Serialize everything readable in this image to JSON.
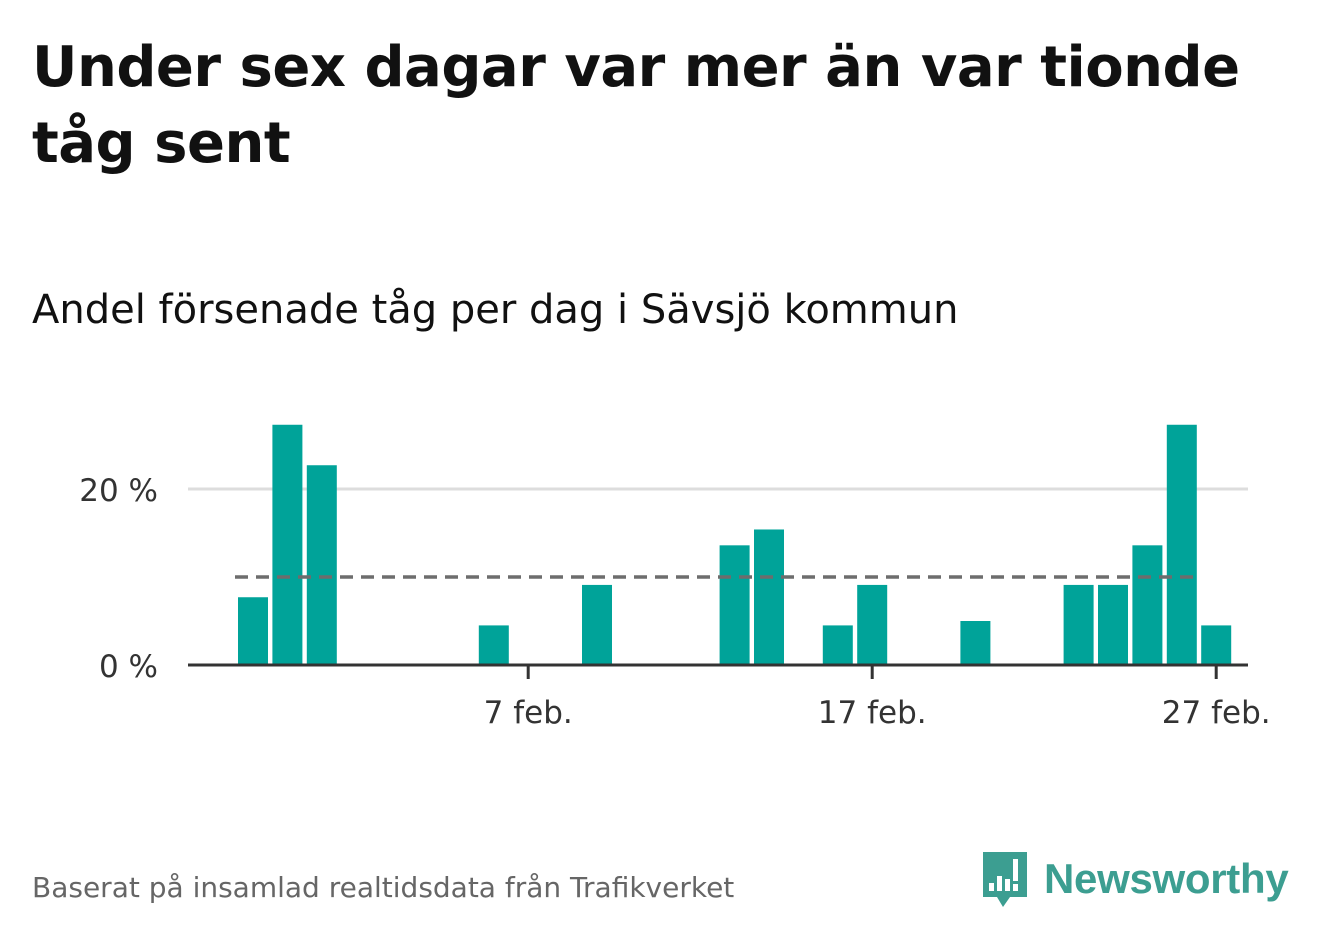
{
  "title": "Under sex dagar var mer än var tionde tåg sent",
  "subtitle": "Andel försenade tåg per dag i Sävsjö kommun",
  "source": "Baserat på insamlad realtidsdata från Trafikverket",
  "logo": {
    "text": "Newsworthy",
    "icon": "newsworthy-chart-bubble-icon",
    "color": "#3c9e91"
  },
  "colors": {
    "bar": "#00a399",
    "grid": "#dddddd",
    "axis": "#333333",
    "reference": "#6d6d6d"
  },
  "chart_data": {
    "type": "bar",
    "title": "",
    "xlabel": "",
    "ylabel": "",
    "unit": "%",
    "x_ticks": [
      "7 feb.",
      "17 feb.",
      "27 feb."
    ],
    "x_tick_dates": [
      "2023-02-07",
      "2023-02-17",
      "2023-02-27"
    ],
    "y_ticks": [
      0,
      20
    ],
    "y_tick_labels": [
      "0 %",
      "20 %"
    ],
    "ylim": [
      0,
      27.5
    ],
    "grid": "horizontal",
    "reference_line": {
      "value": 10,
      "style": "dashed"
    },
    "dates": [
      "2023-01-30",
      "2023-01-31",
      "2023-02-01",
      "2023-02-02",
      "2023-02-03",
      "2023-02-04",
      "2023-02-05",
      "2023-02-06",
      "2023-02-07",
      "2023-02-08",
      "2023-02-09",
      "2023-02-10",
      "2023-02-11",
      "2023-02-12",
      "2023-02-13",
      "2023-02-14",
      "2023-02-15",
      "2023-02-16",
      "2023-02-17",
      "2023-02-18",
      "2023-02-19",
      "2023-02-20",
      "2023-02-21",
      "2023-02-22",
      "2023-02-23",
      "2023-02-24",
      "2023-02-25",
      "2023-02-26",
      "2023-02-27",
      "2023-02-28"
    ],
    "values": [
      7.7,
      27.3,
      22.7,
      0,
      0,
      0,
      0,
      4.5,
      0,
      0,
      9.1,
      0,
      0,
      0,
      13.6,
      15.4,
      0,
      4.5,
      9.1,
      0,
      0,
      5.0,
      0,
      0,
      9.1,
      9.1,
      13.6,
      27.3,
      4.5,
      0
    ]
  }
}
